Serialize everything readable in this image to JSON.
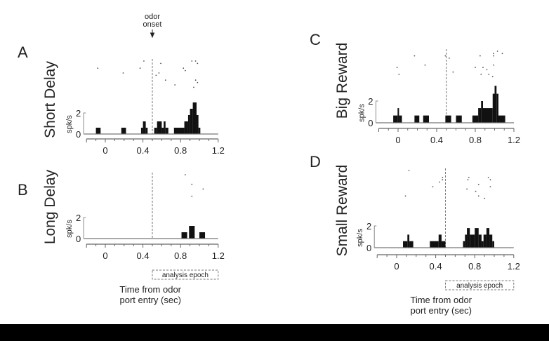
{
  "chart_data": [
    {
      "type": "bar",
      "panel_letter": "A",
      "title": "Short Delay",
      "ylabel": "spk/s",
      "yticks": [
        "0",
        "2"
      ],
      "xticks": [
        "0",
        "0.4",
        "0.8",
        "1.2"
      ],
      "xlim": [
        -0.2,
        1.2
      ],
      "event_line": 0.5,
      "annotation": "odor\nonset",
      "bars": [
        [
          -0.1,
          -0.05,
          0.6
        ],
        [
          0.17,
          0.22,
          0.6
        ],
        [
          0.38,
          0.4,
          0.6
        ],
        [
          0.4,
          0.43,
          1.2
        ],
        [
          0.43,
          0.45,
          0.6
        ],
        [
          0.52,
          0.55,
          0.6
        ],
        [
          0.55,
          0.6,
          1.2
        ],
        [
          0.6,
          0.62,
          0.6
        ],
        [
          0.62,
          0.64,
          1.2
        ],
        [
          0.64,
          0.67,
          0.6
        ],
        [
          0.73,
          0.84,
          0.6
        ],
        [
          0.84,
          0.88,
          1.2
        ],
        [
          0.88,
          0.9,
          1.8
        ],
        [
          0.9,
          0.93,
          2.4
        ],
        [
          0.93,
          0.97,
          3.0
        ],
        [
          0.97,
          0.99,
          1.8
        ],
        [
          0.99,
          1.01,
          0.6
        ]
      ],
      "raster": [
        [
          -0.08,
          4
        ],
        [
          0.19,
          6
        ],
        [
          0.41,
          1
        ],
        [
          0.37,
          4
        ],
        [
          0.59,
          2
        ],
        [
          0.54,
          7
        ],
        [
          0.57,
          6
        ],
        [
          0.64,
          9
        ],
        [
          0.74,
          11
        ],
        [
          0.83,
          4
        ],
        [
          0.85,
          5
        ],
        [
          0.92,
          1
        ],
        [
          0.96,
          1
        ],
        [
          0.98,
          2
        ],
        [
          0.96,
          9
        ],
        [
          0.98,
          10
        ],
        [
          0.94,
          12
        ]
      ]
    },
    {
      "type": "bar",
      "panel_letter": "B",
      "title": "Long Delay",
      "ylabel": "spk/s",
      "yticks": [
        "0",
        "2"
      ],
      "xticks": [
        "0",
        "0.4",
        "0.8",
        "1.2"
      ],
      "xlim": [
        -0.2,
        1.2
      ],
      "event_line": 0.5,
      "epoch_label": "analysis epoch",
      "xlabel": "Time from odor\nport entry (sec)",
      "bars": [
        [
          0.81,
          0.87,
          0.6
        ],
        [
          0.89,
          0.95,
          1.2
        ],
        [
          1.0,
          1.06,
          0.6
        ]
      ],
      "raster": [
        [
          0.85,
          1
        ],
        [
          0.92,
          5
        ],
        [
          1.04,
          7
        ],
        [
          0.92,
          10
        ]
      ]
    },
    {
      "type": "bar",
      "panel_letter": "C",
      "title": "Big Reward",
      "ylabel": "spk/s",
      "yticks": [
        "0",
        "2"
      ],
      "xticks": [
        "0",
        "0.4",
        "0.8",
        "1.2"
      ],
      "xlim": [
        -0.2,
        1.2
      ],
      "event_line": 0.5,
      "bars": [
        [
          -0.05,
          -0.005,
          0.67
        ],
        [
          -0.005,
          0.01,
          1.35
        ],
        [
          0.01,
          0.04,
          0.67
        ],
        [
          0.17,
          0.22,
          0.67
        ],
        [
          0.26,
          0.32,
          0.67
        ],
        [
          0.49,
          0.55,
          0.67
        ],
        [
          0.6,
          0.66,
          0.67
        ],
        [
          0.77,
          0.83,
          0.67
        ],
        [
          0.83,
          0.86,
          1.35
        ],
        [
          0.86,
          0.88,
          2.0
        ],
        [
          0.88,
          0.98,
          1.35
        ],
        [
          0.98,
          1.0,
          2.67
        ],
        [
          1.0,
          1.02,
          3.4
        ],
        [
          1.02,
          1.04,
          2.67
        ],
        [
          1.04,
          1.11,
          0.67
        ]
      ],
      "raster": [
        [
          -0.01,
          8
        ],
        [
          0.01,
          11
        ],
        [
          0.17,
          3
        ],
        [
          0.28,
          7
        ],
        [
          0.49,
          3
        ],
        [
          0.53,
          4
        ],
        [
          0.57,
          10
        ],
        [
          0.8,
          8
        ],
        [
          0.85,
          3
        ],
        [
          0.88,
          8
        ],
        [
          0.92,
          9
        ],
        [
          0.86,
          11
        ],
        [
          0.94,
          11
        ],
        [
          0.98,
          12
        ],
        [
          0.99,
          2
        ],
        [
          0.99,
          3
        ],
        [
          0.99,
          7
        ],
        [
          1.03,
          1
        ],
        [
          1.08,
          2
        ]
      ]
    },
    {
      "type": "bar",
      "panel_letter": "D",
      "title": "Small Reward",
      "ylabel": "spk/s",
      "yticks": [
        "0",
        "2"
      ],
      "xticks": [
        "0",
        "0.4",
        "0.8",
        "1.2"
      ],
      "xlim": [
        -0.2,
        1.2
      ],
      "event_line": 0.5,
      "epoch_label": "analysis epoch",
      "xlabel": "Time from odor\nport entry (sec)",
      "bars": [
        [
          0.065,
          0.11,
          0.6
        ],
        [
          0.11,
          0.13,
          1.2
        ],
        [
          0.13,
          0.17,
          0.6
        ],
        [
          0.34,
          0.43,
          0.6
        ],
        [
          0.43,
          0.46,
          1.2
        ],
        [
          0.46,
          0.5,
          0.6
        ],
        [
          0.68,
          0.7,
          0.6
        ],
        [
          0.7,
          0.72,
          1.2
        ],
        [
          0.72,
          0.75,
          1.8
        ],
        [
          0.75,
          0.8,
          1.2
        ],
        [
          0.8,
          0.84,
          1.8
        ],
        [
          0.84,
          0.87,
          1.2
        ],
        [
          0.87,
          0.89,
          0.6
        ],
        [
          0.89,
          0.92,
          1.2
        ],
        [
          0.92,
          0.95,
          1.8
        ],
        [
          0.95,
          0.98,
          1.2
        ],
        [
          0.98,
          1.0,
          0.6
        ]
      ],
      "raster": [
        [
          0.126,
          1
        ],
        [
          0.09,
          12
        ],
        [
          0.37,
          8
        ],
        [
          0.44,
          6
        ],
        [
          0.47,
          5
        ],
        [
          0.47,
          4
        ],
        [
          0.73,
          5
        ],
        [
          0.74,
          4
        ],
        [
          0.72,
          9
        ],
        [
          0.84,
          7
        ],
        [
          0.81,
          10
        ],
        [
          0.84,
          12
        ],
        [
          0.9,
          13
        ],
        [
          0.94,
          4
        ],
        [
          0.96,
          5
        ],
        [
          0.96,
          8
        ]
      ]
    }
  ]
}
